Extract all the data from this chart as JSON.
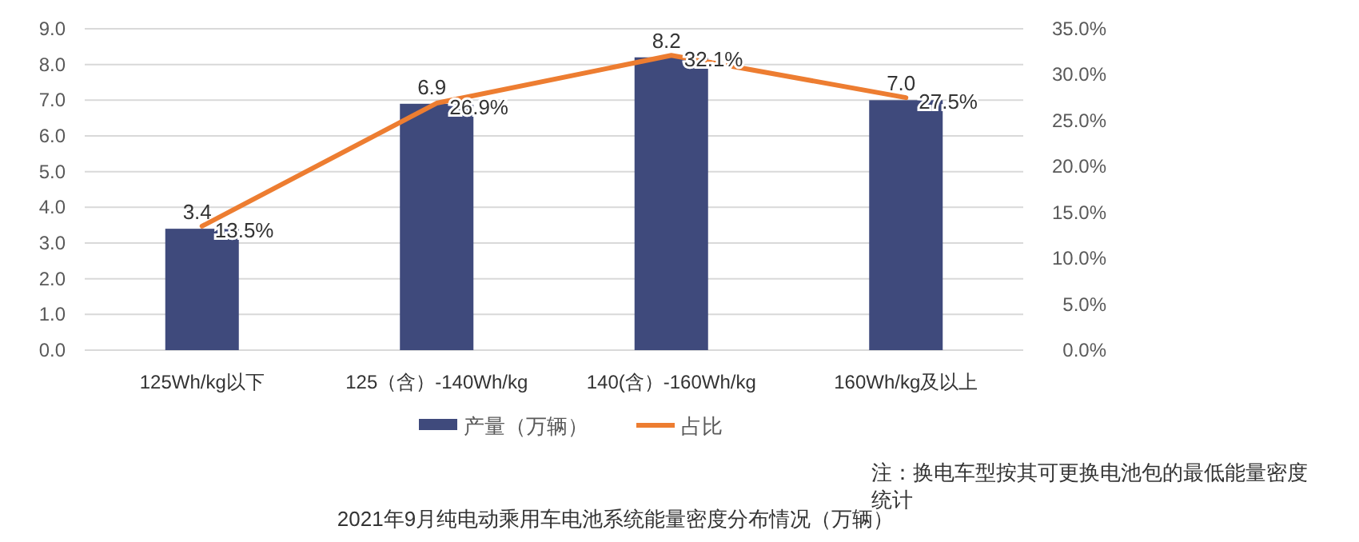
{
  "chart_data": {
    "type": "bar",
    "title": "2021年9月纯电动乘用车电池系统能量密度分布情况（万辆）",
    "annotations": [
      "注：换电车型按其可更换电池包的最低能量密度统计"
    ],
    "categories": [
      "125Wh/kg以下",
      "125（含）-140Wh/kg",
      "140(含）-160Wh/kg",
      "160Wh/kg及以上"
    ],
    "series": [
      {
        "name": "产量（万辆）",
        "color": "#3f4a7c",
        "values": [
          3.4,
          6.9,
          8.2,
          7.0
        ],
        "value_labels": [
          "3.4",
          "6.9",
          "8.2",
          "7.0"
        ]
      },
      {
        "name": "占比",
        "type": "line",
        "axis": "y2",
        "color": "#ed7d31",
        "values": [
          13.5,
          26.9,
          32.1,
          27.5
        ],
        "value_labels": [
          "13.5%",
          "26.9%",
          "32.1%",
          "27.5%"
        ]
      }
    ],
    "ylim": [
      0,
      9
    ],
    "yticks": [
      {
        "value": 0,
        "label": "0.0"
      },
      {
        "value": 1,
        "label": "1.0"
      },
      {
        "value": 2,
        "label": "2.0"
      },
      {
        "value": 3,
        "label": "3.0"
      },
      {
        "value": 4,
        "label": "4.0"
      },
      {
        "value": 5,
        "label": "5.0"
      },
      {
        "value": 6,
        "label": "6.0"
      },
      {
        "value": 7,
        "label": "7.0"
      },
      {
        "value": 8,
        "label": "8.0"
      },
      {
        "value": 9,
        "label": "9.0"
      }
    ],
    "y2lim": [
      0,
      35
    ],
    "y2ticks": [
      {
        "value": 0,
        "label": "0.0%"
      },
      {
        "value": 5,
        "label": "5.0%"
      },
      {
        "value": 10,
        "label": "10.0%"
      },
      {
        "value": 15,
        "label": "15.0%"
      },
      {
        "value": 20,
        "label": "20.0%"
      },
      {
        "value": 25,
        "label": "25.0%"
      },
      {
        "value": 30,
        "label": "30.0%"
      },
      {
        "value": 35,
        "label": "35.0%"
      }
    ],
    "grid": "y",
    "legend": "bottom",
    "marker": "none",
    "line_style": "solid"
  }
}
